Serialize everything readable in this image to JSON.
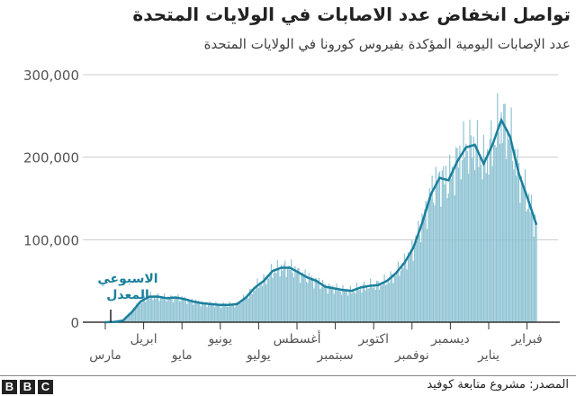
{
  "title": "تواصل انخفاض عدد الاصابات في الولايات المتحدة",
  "subtitle": "عدد الإصابات اليومية المؤكدة بفيروس كورونا في الولايات المتحدة",
  "source": "المصدر: مشروع متابعة كوفيد",
  "logo": "BBC",
  "colors": {
    "bars": "#8fc3d3",
    "line": "#1a7f9c",
    "annotation": "#1a7f9c",
    "grid": "#cccccc",
    "axis": "#333333"
  },
  "chart_data": {
    "type": "bar",
    "ylim": [
      0,
      300000
    ],
    "yticks": [
      0,
      100000,
      200000,
      300000
    ],
    "ytick_labels": [
      "0",
      "100,000",
      "200,000",
      "300,000"
    ],
    "grid": true,
    "annotation": [
      "الاسبوعي",
      "المعدل"
    ],
    "month_labels": [
      "مارس",
      "ابريل",
      "مايو",
      "يونيو",
      "يوليو",
      "أغسطس",
      "سبتمبر",
      "اكتوبر",
      "نوفمبر",
      "ديسمبر",
      "يناير",
      "فبراير"
    ],
    "weekly_average": {
      "start": "2020-03-01",
      "step_days": 7,
      "values": [
        0,
        300,
        2000,
        12000,
        25000,
        31000,
        31000,
        29000,
        30000,
        28000,
        25000,
        23000,
        22000,
        21000,
        21000,
        22000,
        30000,
        42000,
        50000,
        62000,
        66000,
        66000,
        60000,
        54000,
        50000,
        43000,
        41000,
        39000,
        38000,
        42000,
        44000,
        45000,
        50000,
        59000,
        72000,
        90000,
        120000,
        155000,
        175000,
        172000,
        195000,
        212000,
        215000,
        192000,
        215000,
        245000,
        225000,
        180000,
        150000,
        118000
      ]
    }
  }
}
